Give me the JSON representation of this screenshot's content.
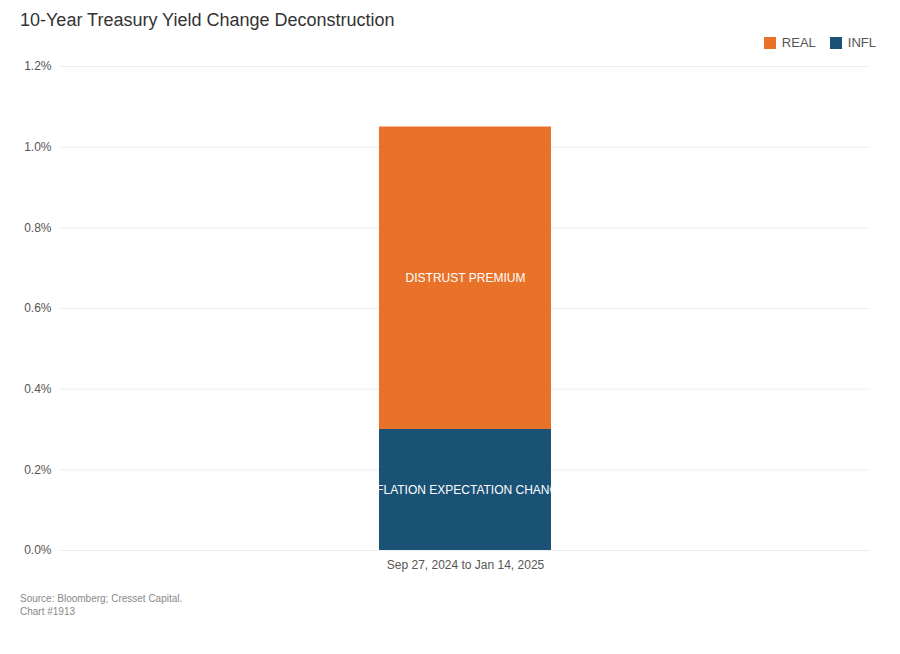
{
  "chart_data": {
    "type": "bar",
    "title": "10-Year Treasury Yield Change Deconstruction",
    "categories": [
      "Sep 27, 2024 to Jan 14, 2025"
    ],
    "series": [
      {
        "name": "INFL",
        "color": "#1a5276",
        "values": [
          0.003
        ]
      },
      {
        "name": "REAL",
        "color": "#e8722a",
        "values": [
          0.0075
        ]
      }
    ],
    "stacked": true,
    "annotations": [
      {
        "series": "INFL",
        "text": "INFLATION EXPECTATION CHANGE"
      },
      {
        "series": "REAL",
        "text": "DISTRUST PREMIUM"
      }
    ],
    "ylim": [
      0.0,
      0.012
    ],
    "yticks": [
      {
        "value": 0.0,
        "label": "0.0%"
      },
      {
        "value": 0.002,
        "label": "0.2%"
      },
      {
        "value": 0.004,
        "label": "0.4%"
      },
      {
        "value": 0.006,
        "label": "0.6%"
      },
      {
        "value": 0.008,
        "label": "0.8%"
      },
      {
        "value": 0.01,
        "label": "1.0%"
      },
      {
        "value": 0.012,
        "label": "1.2%"
      }
    ],
    "grid": true,
    "legend": "upper right",
    "caption": "Source: Bloomberg; Cresset Capital.\nChart #1913"
  }
}
